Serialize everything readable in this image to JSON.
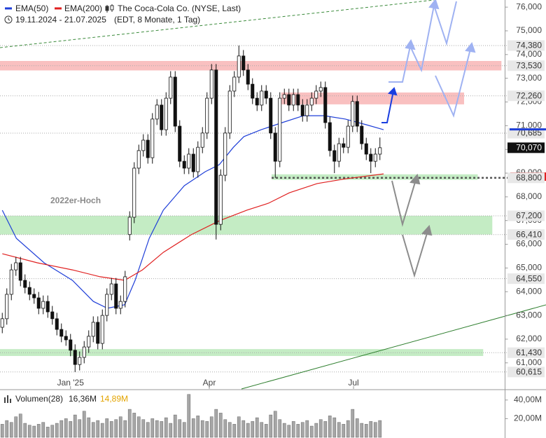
{
  "chart_data": {
    "type": "candlestick",
    "title": "The Coca-Cola Co. (NYSE, Last)",
    "date_range": "19.11.2024 - 21.07.2025",
    "info": "(EDT, 8 Monate, 1 Tag)",
    "open": [
      62500,
      62860,
      63890,
      64920,
      65220,
      64480,
      64180,
      63890,
      63740,
      63300,
      63590,
      63150,
      62860,
      62410,
      62120,
      61970,
      61530,
      60930,
      61230,
      61670,
      62120,
      62710,
      61820,
      63000,
      63890,
      64330,
      63300,
      63590,
      66410,
      67140,
      69210,
      69950,
      70390,
      69650,
      71280,
      71870,
      70830,
      72160,
      73050,
      70980,
      69500,
      69210,
      69800,
      69060,
      70090,
      70690,
      72160,
      73350,
      66840,
      68910,
      70690,
      72460,
      73050,
      73940,
      73350,
      72750,
      72160,
      71870,
      72460,
      72160,
      70690,
      69500,
      72160,
      72310,
      71870,
      72310,
      71870,
      71420,
      71870,
      72160,
      72460,
      72610,
      71130,
      69950,
      69500,
      70240,
      70090,
      70980,
      72020,
      70980,
      70240,
      69800,
      69500,
      69800
    ],
    "high": [
      63110,
      64140,
      65170,
      65470,
      65470,
      64730,
      64430,
      64140,
      63990,
      63840,
      63840,
      63400,
      63110,
      62660,
      62370,
      62220,
      61780,
      61480,
      61920,
      62370,
      62960,
      62960,
      63250,
      64140,
      64580,
      64580,
      63840,
      64880,
      67390,
      69460,
      70200,
      70640,
      70640,
      71530,
      72120,
      72120,
      72410,
      73300,
      73300,
      71230,
      69750,
      70050,
      70050,
      70340,
      70940,
      72410,
      73600,
      73600,
      69160,
      70940,
      72710,
      73300,
      74380,
      74190,
      73600,
      73000,
      72410,
      72710,
      72710,
      72410,
      70940,
      72410,
      72560,
      72560,
      72560,
      72560,
      72120,
      72120,
      72410,
      72710,
      72860,
      72860,
      71380,
      70200,
      70490,
      70490,
      71230,
      72270,
      72270,
      71230,
      70490,
      70050,
      70050,
      70500
    ],
    "low": [
      62250,
      62610,
      63640,
      64670,
      64230,
      63930,
      63640,
      63490,
      63050,
      63050,
      62900,
      62610,
      62160,
      61870,
      61720,
      61280,
      60615,
      60680,
      60980,
      61420,
      61870,
      61570,
      61570,
      62750,
      63640,
      63050,
      63050,
      63340,
      66160,
      66890,
      68960,
      69700,
      69400,
      69400,
      71030,
      70580,
      70580,
      71910,
      70730,
      69250,
      68960,
      68960,
      68810,
      68810,
      69840,
      70440,
      71910,
      66200,
      66590,
      68660,
      70440,
      72210,
      72800,
      73100,
      72500,
      71910,
      71620,
      71620,
      71910,
      70440,
      68800,
      69250,
      71910,
      71620,
      71620,
      71620,
      71170,
      71170,
      71620,
      71910,
      72210,
      70880,
      69700,
      69000,
      69250,
      69840,
      69840,
      70730,
      70730,
      69990,
      69550,
      69000,
      69250,
      69550
    ],
    "close": [
      62860,
      63890,
      64920,
      65220,
      64480,
      64180,
      63890,
      63740,
      63300,
      63590,
      63150,
      62860,
      62410,
      62120,
      61970,
      61530,
      60930,
      61230,
      61670,
      62120,
      62710,
      61820,
      63000,
      63890,
      64330,
      63300,
      63590,
      64630,
      67140,
      69210,
      69950,
      70390,
      69650,
      71280,
      71870,
      70830,
      72160,
      73050,
      70980,
      69500,
      69210,
      69800,
      69060,
      70090,
      70690,
      72160,
      73350,
      66840,
      68910,
      70690,
      72460,
      73050,
      73940,
      73350,
      72750,
      72160,
      71870,
      72460,
      72160,
      70690,
      69500,
      72160,
      72310,
      71870,
      72310,
      71870,
      71420,
      71870,
      72160,
      72460,
      72610,
      71130,
      69950,
      69500,
      70240,
      70090,
      70980,
      72020,
      70980,
      70240,
      69800,
      69500,
      69800,
      70070
    ],
    "xlim": [
      0,
      111
    ],
    "ylim": [
      59900,
      76300
    ],
    "xticks": [
      {
        "value": 15,
        "label": "Jan '25"
      },
      {
        "value": 45.5,
        "label": "Apr"
      },
      {
        "value": 77.2,
        "label": "Jul"
      }
    ],
    "yticks": [
      {
        "value": 61000,
        "label": "61,000"
      },
      {
        "value": 62000,
        "label": "62,000"
      },
      {
        "value": 63000,
        "label": "63,000"
      },
      {
        "value": 64000,
        "label": "64,000"
      },
      {
        "value": 65000,
        "label": "65,000"
      },
      {
        "value": 66000,
        "label": "66,000"
      },
      {
        "value": 67000,
        "label": "67,000"
      },
      {
        "value": 68000,
        "label": "68,000"
      },
      {
        "value": 69000,
        "label": "69,000"
      },
      {
        "value": 70000,
        "label": "70,000"
      },
      {
        "value": 71000,
        "label": "71,000"
      },
      {
        "value": 72000,
        "label": "72,000"
      },
      {
        "value": 73000,
        "label": "73,000"
      },
      {
        "value": 74000,
        "label": "74,000"
      },
      {
        "value": 75000,
        "label": "75,000"
      },
      {
        "value": 76000,
        "label": "76,000"
      }
    ],
    "series": [
      {
        "name": "EMA(50)",
        "color": "#1f3fd8",
        "x": [
          0,
          3.1,
          9.2,
          15.4,
          20,
          23.1,
          26.9,
          29.2,
          32.3,
          35.4,
          40,
          44.6,
          47.7,
          50.8,
          53.1,
          56.9,
          61.5,
          66.2,
          70.8,
          75.4,
          80,
          83.8
        ],
        "values": [
          67435,
          66250,
          65220,
          64480,
          63590,
          63300,
          63450,
          64480,
          66250,
          67440,
          68470,
          69060,
          69360,
          70090,
          70540,
          70830,
          71130,
          71420,
          71420,
          71280,
          71040,
          70830
        ]
      },
      {
        "name": "EMA(200)",
        "color": "#e02020",
        "x": [
          0,
          7.7,
          15.4,
          21.5,
          26.9,
          30.8,
          35.4,
          41.5,
          47.7,
          53.8,
          58.5,
          63.1,
          69.2,
          75.4,
          83.8
        ],
        "values": [
          65600,
          65220,
          64920,
          64630,
          64480,
          64920,
          65660,
          66400,
          66990,
          67440,
          67730,
          68170,
          68560,
          68760,
          68970
        ]
      }
    ],
    "zones": [
      {
        "from": 73330,
        "to": 73730,
        "x": [
          0,
          110.2
        ],
        "color": "#f9c0c0"
      },
      {
        "from": 71900,
        "to": 72400,
        "x": [
          61.8,
          102
        ],
        "color": "#f9c0c0"
      },
      {
        "from": 68720,
        "to": 68950,
        "x": [
          59.7,
          105
        ],
        "color": "#c4ecc4"
      },
      {
        "from": 66410,
        "to": 67200,
        "x": [
          0,
          108.2
        ],
        "color": "#c4ecc4"
      },
      {
        "from": 61290,
        "to": 61580,
        "x": [
          0,
          106.2
        ],
        "color": "#c4ecc4"
      }
    ],
    "levels": [
      {
        "value": 74380,
        "label": "74,380"
      },
      {
        "value": 73530,
        "label": "73,530"
      },
      {
        "value": 72260,
        "label": "72,260"
      },
      {
        "value": 70685,
        "label": "70,685"
      },
      {
        "value": 68800,
        "label": "68,800"
      },
      {
        "value": 67200,
        "label": "67,200"
      },
      {
        "value": 66410,
        "label": "66,410"
      },
      {
        "value": 64550,
        "label": "64,550"
      },
      {
        "value": 61430,
        "label": "61,430"
      },
      {
        "value": 60615,
        "label": "60,615"
      }
    ],
    "last_price": {
      "value": 70070,
      "label": "70,070"
    },
    "annotation": "2022er-Hoch",
    "volume": {
      "title": "Volumen(28)",
      "last": {
        "value": 16.36,
        "label": "16,36M"
      },
      "average": {
        "value": 14.89,
        "label": "14,89M",
        "color": "#e3a400"
      },
      "ylim": [
        0,
        50
      ],
      "yticks": [
        {
          "value": 20,
          "label": "20,00M"
        },
        {
          "value": 40,
          "label": "40,00M"
        }
      ],
      "values": [
        14,
        18,
        16,
        22,
        25,
        15,
        13,
        12,
        14,
        16,
        11,
        13,
        15,
        18,
        20,
        17,
        24,
        19,
        28,
        21,
        16,
        18,
        15,
        20,
        17,
        19,
        22,
        18,
        30,
        26,
        22,
        19,
        16,
        20,
        18,
        17,
        21,
        15,
        24,
        19,
        16,
        46,
        20,
        23,
        18,
        17,
        22,
        30,
        26,
        19,
        16,
        14,
        22,
        18,
        15,
        17,
        21,
        16,
        14,
        24,
        28,
        19,
        15,
        13,
        17,
        14,
        16,
        18,
        12,
        15,
        19,
        17,
        23,
        21,
        16,
        14,
        18,
        30,
        20,
        15,
        14,
        17,
        16,
        18
      ]
    }
  }
}
